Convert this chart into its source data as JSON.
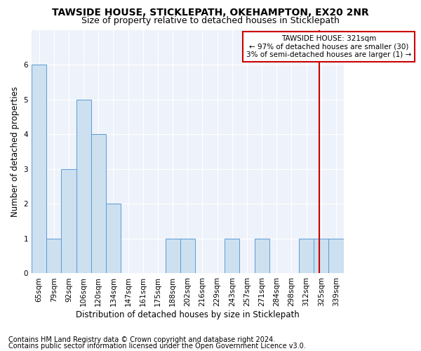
{
  "title": "TAWSIDE HOUSE, STICKLEPATH, OKEHAMPTON, EX20 2NR",
  "subtitle": "Size of property relative to detached houses in Sticklepath",
  "xlabel": "Distribution of detached houses by size in Sticklepath",
  "ylabel": "Number of detached properties",
  "categories": [
    "65sqm",
    "79sqm",
    "92sqm",
    "106sqm",
    "120sqm",
    "134sqm",
    "147sqm",
    "161sqm",
    "175sqm",
    "188sqm",
    "202sqm",
    "216sqm",
    "229sqm",
    "243sqm",
    "257sqm",
    "271sqm",
    "284sqm",
    "298sqm",
    "312sqm",
    "325sqm",
    "339sqm"
  ],
  "values": [
    6,
    1,
    3,
    5,
    4,
    2,
    0,
    0,
    0,
    1,
    1,
    0,
    0,
    1,
    0,
    1,
    0,
    0,
    1,
    1,
    1
  ],
  "bar_color": "#cce0f0",
  "bar_edge_color": "#5b9bd5",
  "vline_x_index": 18.85,
  "vline_color": "#cc0000",
  "annotation_text": "TAWSIDE HOUSE: 321sqm\n← 97% of detached houses are smaller (30)\n3% of semi-detached houses are larger (1) →",
  "annotation_box_color": "#cc0000",
  "ylim": [
    0,
    7
  ],
  "yticks": [
    0,
    1,
    2,
    3,
    4,
    5,
    6
  ],
  "footnote1": "Contains HM Land Registry data © Crown copyright and database right 2024.",
  "footnote2": "Contains public sector information licensed under the Open Government Licence v3.0.",
  "background_color": "#eef2fa",
  "title_fontsize": 10,
  "subtitle_fontsize": 9,
  "axis_label_fontsize": 8.5,
  "tick_fontsize": 7.5,
  "annotation_fontsize": 7.5,
  "footnote_fontsize": 7
}
